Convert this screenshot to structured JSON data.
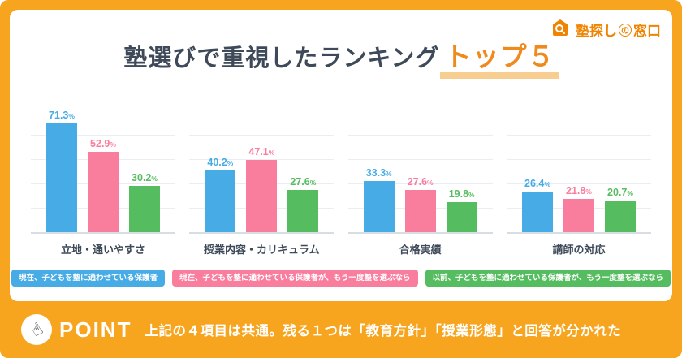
{
  "logo": {
    "part1": "塾探し",
    "part2": "の",
    "part3": "窓口"
  },
  "title": {
    "main": "塾選びで重視したランキング",
    "highlight": "トップ５"
  },
  "chart_data": {
    "type": "bar",
    "unit": "%",
    "ylim": [
      0,
      80
    ],
    "gridlines": 5,
    "legend_position": "bottom",
    "categories": [
      "立地・通いやすさ",
      "授業内容・カリキュラム",
      "合格実績",
      "講師の対応"
    ],
    "series": [
      {
        "name": "現在、子どもを塾に通わせている保護者",
        "color": "#47ABE5",
        "values": [
          71.3,
          40.2,
          33.3,
          26.4
        ]
      },
      {
        "name": "現在、子どもを塾に通わせている保護者が、もう一度塾を選ぶなら",
        "color": "#F97E9E",
        "values": [
          52.9,
          47.1,
          27.6,
          21.8
        ]
      },
      {
        "name": "以前、子どもを塾に通わせている保護者が、もう一度塾を選ぶなら",
        "color": "#55BC5F",
        "values": [
          30.2,
          27.6,
          19.8,
          20.7
        ]
      }
    ]
  },
  "footer": {
    "badge": "POINT",
    "text": "上記の４項目は共通。残る１つは「教育方針」「授業形態」と回答が分かれた"
  },
  "colors": {
    "background": "#F7A51F",
    "title_text": "#3E4A59",
    "highlight_text": "#EF8A1E",
    "highlight_underline": "#F8CD90",
    "logo_orange": "#F08300",
    "bar_blue": "#47ABE5",
    "bar_pink": "#F97E9E",
    "bar_green": "#55BC5F"
  }
}
